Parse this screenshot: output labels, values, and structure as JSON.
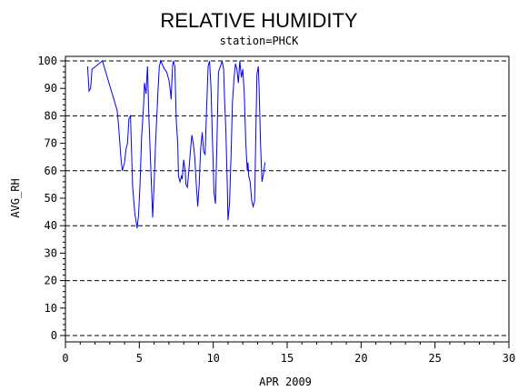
{
  "chart_data": {
    "type": "line",
    "title": "RELATIVE HUMIDITY",
    "subtitle": "station=PHCK",
    "xlabel": "APR 2009",
    "ylabel": "AVG_RH",
    "xlim": [
      0,
      30
    ],
    "ylim": [
      0,
      100
    ],
    "x_ticks": [
      0,
      5,
      10,
      15,
      20,
      25,
      30
    ],
    "y_ticks": [
      0,
      10,
      20,
      30,
      40,
      50,
      60,
      70,
      80,
      90,
      100
    ],
    "reference_lines": [
      0,
      20,
      40,
      60,
      80,
      100
    ],
    "grid": false,
    "series": [
      {
        "color": "#0000ff",
        "points": [
          [
            1.5,
            98
          ],
          [
            1.6,
            89
          ],
          [
            1.7,
            90
          ],
          [
            1.8,
            97
          ],
          [
            2.5,
            100
          ],
          [
            3.5,
            82
          ],
          [
            3.6,
            76
          ],
          [
            3.75,
            65
          ],
          [
            3.85,
            60
          ],
          [
            4.0,
            63
          ],
          [
            4.1,
            68
          ],
          [
            4.2,
            70
          ],
          [
            4.3,
            79
          ],
          [
            4.4,
            80
          ],
          [
            4.45,
            71
          ],
          [
            4.55,
            54
          ],
          [
            4.7,
            44
          ],
          [
            4.8,
            41
          ],
          [
            4.85,
            39
          ],
          [
            4.95,
            44
          ],
          [
            5.05,
            55
          ],
          [
            5.15,
            72
          ],
          [
            5.3,
            85
          ],
          [
            5.35,
            92
          ],
          [
            5.45,
            88
          ],
          [
            5.55,
            98
          ],
          [
            5.65,
            79
          ],
          [
            5.8,
            58
          ],
          [
            5.9,
            43
          ],
          [
            6.0,
            55
          ],
          [
            6.1,
            70
          ],
          [
            6.25,
            88
          ],
          [
            6.35,
            98
          ],
          [
            6.45,
            100
          ],
          [
            6.7,
            97
          ],
          [
            6.85,
            96
          ],
          [
            7.0,
            93
          ],
          [
            7.1,
            89
          ],
          [
            7.15,
            86
          ],
          [
            7.25,
            98
          ],
          [
            7.3,
            100
          ],
          [
            7.4,
            98
          ],
          [
            7.5,
            78
          ],
          [
            7.6,
            70
          ],
          [
            7.65,
            58
          ],
          [
            7.75,
            56
          ],
          [
            7.85,
            58
          ],
          [
            7.9,
            57
          ],
          [
            8.0,
            64
          ],
          [
            8.1,
            60
          ],
          [
            8.15,
            55
          ],
          [
            8.25,
            54
          ],
          [
            8.35,
            60
          ],
          [
            8.45,
            67
          ],
          [
            8.55,
            73
          ],
          [
            8.65,
            70
          ],
          [
            8.75,
            65
          ],
          [
            8.85,
            55
          ],
          [
            8.95,
            47
          ],
          [
            9.05,
            55
          ],
          [
            9.15,
            68
          ],
          [
            9.25,
            74
          ],
          [
            9.35,
            67
          ],
          [
            9.45,
            66
          ],
          [
            9.55,
            82
          ],
          [
            9.65,
            98
          ],
          [
            9.75,
            100
          ],
          [
            9.85,
            90
          ],
          [
            9.95,
            70
          ],
          [
            10.05,
            52
          ],
          [
            10.15,
            48
          ],
          [
            10.25,
            70
          ],
          [
            10.35,
            96
          ],
          [
            10.55,
            99
          ],
          [
            10.6,
            100
          ],
          [
            10.7,
            97
          ],
          [
            10.75,
            88
          ],
          [
            10.85,
            75
          ],
          [
            10.95,
            55
          ],
          [
            11.0,
            42
          ],
          [
            11.1,
            48
          ],
          [
            11.2,
            65
          ],
          [
            11.3,
            85
          ],
          [
            11.4,
            93
          ],
          [
            11.5,
            99
          ],
          [
            11.6,
            97
          ],
          [
            11.7,
            92
          ],
          [
            11.8,
            100
          ],
          [
            11.9,
            94
          ],
          [
            12.0,
            97
          ],
          [
            12.1,
            88
          ],
          [
            12.2,
            70
          ],
          [
            12.3,
            60
          ],
          [
            12.35,
            63
          ],
          [
            12.4,
            58
          ],
          [
            12.5,
            56
          ],
          [
            12.6,
            49
          ],
          [
            12.7,
            47
          ],
          [
            12.8,
            49
          ],
          [
            12.95,
            95
          ],
          [
            13.05,
            98
          ],
          [
            13.1,
            90
          ],
          [
            13.2,
            70
          ],
          [
            13.3,
            56
          ],
          [
            13.4,
            59
          ],
          [
            13.5,
            63
          ]
        ]
      }
    ]
  }
}
